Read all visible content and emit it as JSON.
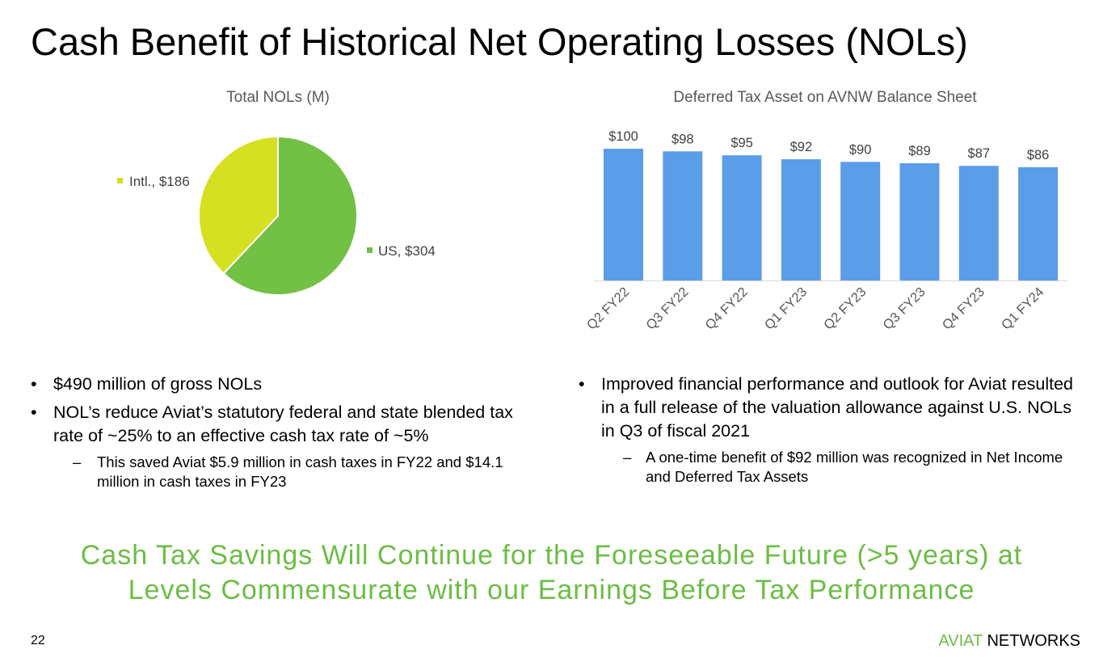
{
  "slide": {
    "title": "Cash Benefit of Historical Net Operating Losses (NOLs)",
    "page_number": "22",
    "brand_part1": "AVIAT",
    "brand_part2": "NETWORKS",
    "tagline_line1": "Cash Tax Savings Will Continue for the Foreseeable Future (>5 years) at",
    "tagline_line2": "Levels Commensurate with our Earnings Before Tax Performance"
  },
  "left_bullets": {
    "b1": "$490 million of gross NOLs",
    "b2": "NOL’s reduce Aviat’s statutory federal and state blended tax rate of ~25% to an effective cash tax rate of ~5%",
    "b2_sub": "This saved Aviat $5.9 million in cash taxes in FY22 and $14.1 million in cash taxes in FY23"
  },
  "right_bullets": {
    "b1": "Improved financial performance and outlook for Aviat resulted in a full release of the valuation allowance against U.S. NOLs in Q3 of fiscal 2021",
    "b1_sub": "A one-time benefit of $92 million was recognized in Net Income and Deferred Tax Assets"
  },
  "chart_data": [
    {
      "type": "pie",
      "title": "Total NOLs (M)",
      "slices": [
        {
          "name": "US",
          "value": 304,
          "label": "US, $304",
          "color": "#72c044"
        },
        {
          "name": "Intl.",
          "value": 186,
          "label": "Intl., $186",
          "color": "#d5e021"
        }
      ],
      "legend": "labels beside slices"
    },
    {
      "type": "bar",
      "title": "Deferred Tax Asset on AVNW Balance Sheet",
      "categories": [
        "Q2 FY22",
        "Q3 FY22",
        "Q4 FY22",
        "Q1 FY23",
        "Q2 FY23",
        "Q3 FY23",
        "Q4 FY23",
        "Q1 FY24"
      ],
      "values": [
        100,
        98,
        95,
        92,
        90,
        89,
        87,
        86
      ],
      "data_labels": [
        "$100",
        "$98",
        "$95",
        "$92",
        "$90",
        "$89",
        "$87",
        "$86"
      ],
      "color": "#5a9de8",
      "grid": false,
      "ylim": [
        0,
        100
      ]
    }
  ]
}
